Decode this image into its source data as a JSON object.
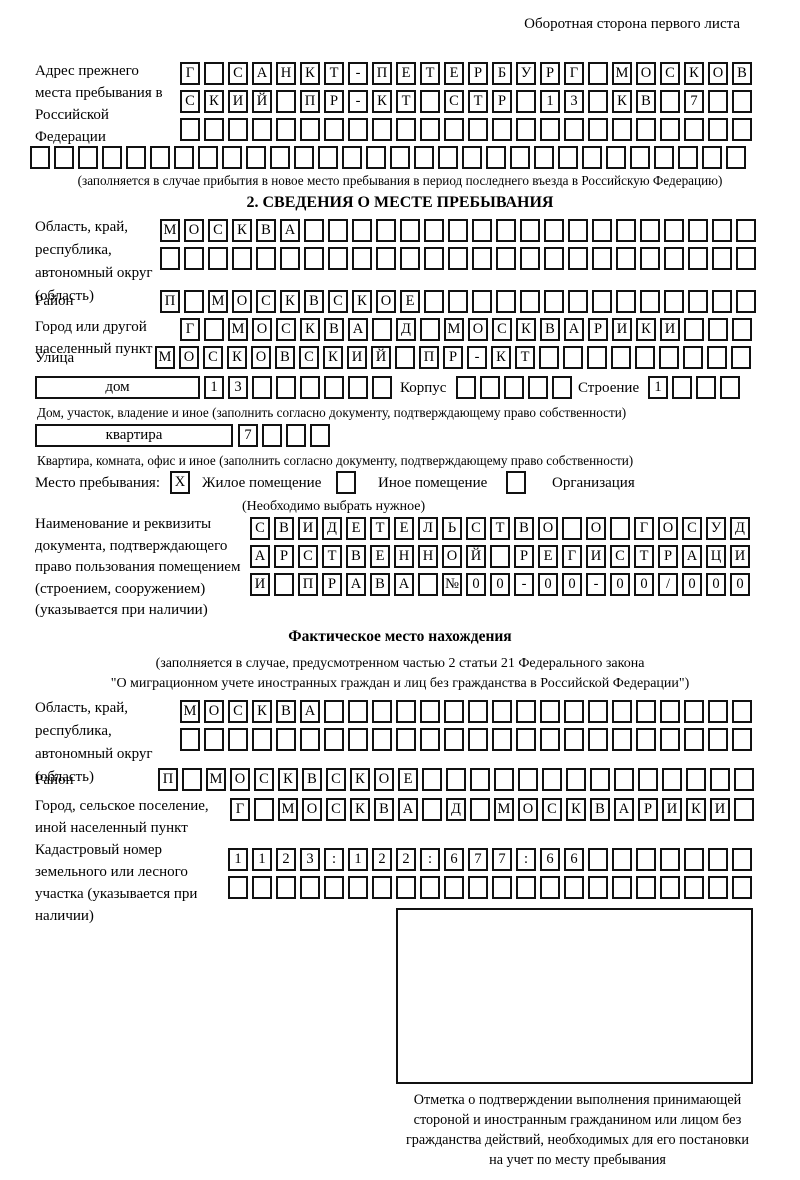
{
  "page": {
    "header_note": "Оборотная сторона первого листа"
  },
  "prev_address": {
    "label": "Адрес прежнего места пребывания в Российской Федерации",
    "row1": {
      "t": "Г САНКТ-ПЕТЕРБУРГ МОСКОВ",
      "n": 24
    },
    "row2": {
      "t": "СКИЙ ПР-КТ СТР 13 КВ 7",
      "n": 24
    },
    "row3": {
      "t": "",
      "n": 24
    },
    "row4": {
      "t": "",
      "n": 30
    },
    "caption": "(заполняется в случае прибытия в новое место пребывания в период последнего въезда в Российскую Федерацию)"
  },
  "section2": {
    "title": "2. СВЕДЕНИЯ О МЕСТЕ ПРЕБЫВАНИЯ",
    "region": {
      "label": "Область, край, республика, автономный округ (область)",
      "row1": {
        "t": "МОСКВА",
        "n": 25
      },
      "row2": {
        "t": "",
        "n": 25
      }
    },
    "district": {
      "label": "Район",
      "row": {
        "t": "П МОСКВСКОЕ",
        "n": 25
      }
    },
    "city": {
      "label": "Город или другой населенный пункт",
      "row": {
        "t": "Г МОСКВА Д МОСКВАРИКИ",
        "n": 24
      }
    },
    "street": {
      "label": "Улица",
      "row": {
        "t": "МОСКОВСКИЙ ПР-КТ",
        "n": 25
      }
    },
    "house": {
      "box_label": "дом",
      "cells": {
        "t": "13",
        "n": 8
      },
      "korpus_label": "Корпус",
      "korpus_cells": {
        "t": "",
        "n": 5
      },
      "stroenie_label": "Строение",
      "stroenie_cells": {
        "t": "1",
        "n": 4
      },
      "caption": "Дом, участок, владение и иное (заполнить согласно документу, подтверждающему право собственности)"
    },
    "apartment": {
      "box_label": "квартира",
      "cells": {
        "t": "7",
        "n": 4
      },
      "caption": "Квартира, комната, офис и иное (заполнить согласно документу, подтверждающему право собственности)"
    },
    "stay_type": {
      "label": "Место пребывания:",
      "option1": {
        "label": "Жилое помещение",
        "mark": {
          "t": "X",
          "n": 1
        }
      },
      "option2": {
        "label": "Иное помещение",
        "mark": {
          "t": "",
          "n": 1
        }
      },
      "option3": {
        "label": "Организация",
        "mark": {
          "t": "",
          "n": 1
        }
      },
      "note": "(Необходимо выбрать нужное)"
    },
    "document": {
      "label": "Наименование и реквизиты документа, подтверждающего право пользования помещением (строением, сооружением) (указывается при наличии)",
      "row1": {
        "t": "СВИДЕТЕЛЬСТВО О ГОСУД",
        "n": 21
      },
      "row2": {
        "t": "АРСТВЕННОЙ РЕГИСТРАЦИ",
        "n": 21
      },
      "row3": {
        "t": "И ПРАВА №00-00-00/000",
        "n": 21
      }
    }
  },
  "actual_location": {
    "title": "Фактическое место нахождения",
    "caption_lines": [
      "(заполняется в случае, предусмотренном частью 2 статьи 21 Федерального закона",
      "\"О миграционном учете иностранных граждан и лиц без гражданства в Российской Федерации\")"
    ],
    "region": {
      "label": "Область, край, республика, автономный округ (область)",
      "row1": {
        "t": "МОСКВА",
        "n": 24
      },
      "row2": {
        "t": "",
        "n": 24
      }
    },
    "district": {
      "label": "Район",
      "row": {
        "t": "П МОСКВСКОЕ",
        "n": 25
      }
    },
    "city": {
      "label": "Город, сельское поселение, иной населенный пункт",
      "row": {
        "t": "Г МОСКВА Д МОСКВАРИКИ",
        "n": 22
      }
    },
    "cadastral": {
      "label": "Кадастровый номер земельного или лесного участка (указывается при наличии)",
      "row1": {
        "t": "1123:122:677:66",
        "n": 22
      },
      "row2": {
        "t": "",
        "n": 22
      }
    }
  },
  "stamp": {
    "caption_lines": [
      "Отметка о подтверждении выполнения принимающей",
      "стороной и иностранным гражданином или лицом без",
      "гражданства действий, необходимых для его постановки",
      "на учет по месту пребывания"
    ]
  }
}
